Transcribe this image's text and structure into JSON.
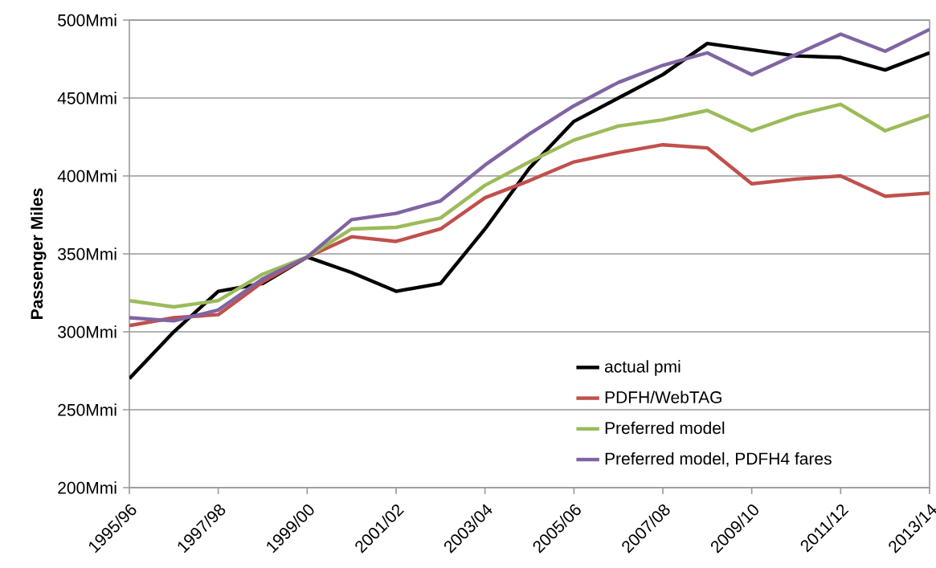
{
  "chart_data": {
    "type": "line",
    "ylabel": "Passenger Miles",
    "categories": [
      "1995/96",
      null,
      "1997/98",
      null,
      "1999/00",
      null,
      "2001/02",
      null,
      "2003/04",
      null,
      "2005/06",
      null,
      "2007/08",
      null,
      "2009/10",
      null,
      "2011/12",
      null,
      "2013/14"
    ],
    "series": [
      {
        "name": "actual pmi",
        "color": "#000000",
        "values": [
          270,
          300,
          326,
          331,
          348,
          338,
          326,
          331,
          366,
          405,
          435,
          450,
          465,
          485,
          481,
          477,
          476,
          468,
          479
        ]
      },
      {
        "name": "PDFH/WebTAG",
        "color": "#c0504d",
        "values": [
          304,
          309,
          311,
          332,
          348,
          361,
          358,
          366,
          386,
          397,
          409,
          415,
          420,
          418,
          395,
          398,
          400,
          387,
          389
        ]
      },
      {
        "name": "Preferred model",
        "color": "#9bbb59",
        "values": [
          320,
          316,
          320,
          337,
          348,
          366,
          367,
          373,
          394,
          409,
          423,
          432,
          436,
          442,
          429,
          439,
          446,
          429,
          439
        ]
      },
      {
        "name": "Preferred model, PDFH4 fares",
        "color": "#8064a2",
        "values": [
          309,
          307,
          314,
          334,
          348,
          372,
          376,
          384,
          407,
          427,
          445,
          460,
          471,
          479,
          465,
          478,
          491,
          480,
          494
        ]
      }
    ],
    "ylim": [
      200,
      500
    ],
    "yticks": [
      {
        "value": 200,
        "label": "200Mmi"
      },
      {
        "value": 250,
        "label": "250Mmi"
      },
      {
        "value": 300,
        "label": "300Mmi"
      },
      {
        "value": 350,
        "label": "350Mmi"
      },
      {
        "value": 400,
        "label": "400Mmi"
      },
      {
        "value": 450,
        "label": "450Mmi"
      },
      {
        "value": 500,
        "label": "500Mmi"
      }
    ],
    "grid": "y",
    "legend": "bottom right",
    "marker": "none",
    "line_style": "solid"
  }
}
